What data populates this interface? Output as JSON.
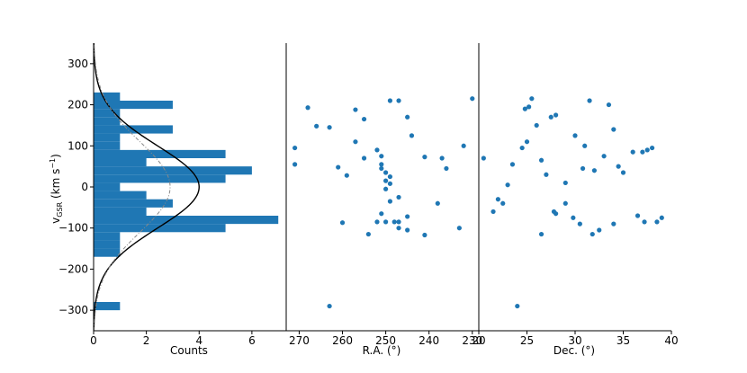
{
  "chart_data": [
    {
      "type": "bar",
      "orientation": "horizontal",
      "xlabel": "Counts",
      "ylabel_main": "v",
      "ylabel_sub": "GSR",
      "ylabel_units": " (km s",
      "ylabel_exp": "−1",
      "ylabel_close": ")",
      "xlim": [
        0,
        7.3
      ],
      "ylim": [
        -350,
        350
      ],
      "xticks": [
        0,
        2,
        4,
        6
      ],
      "yticks": [
        -300,
        -200,
        -100,
        0,
        100,
        200,
        300
      ],
      "bar_color": "#1f77b4",
      "bins": [
        {
          "low": -300,
          "high": -280,
          "count": 1
        },
        {
          "low": -170,
          "high": -150,
          "count": 1
        },
        {
          "low": -150,
          "high": -130,
          "count": 1
        },
        {
          "low": -130,
          "high": -110,
          "count": 1
        },
        {
          "low": -110,
          "high": -90,
          "count": 5
        },
        {
          "low": -90,
          "high": -70,
          "count": 7
        },
        {
          "low": -70,
          "high": -50,
          "count": 2
        },
        {
          "low": -50,
          "high": -30,
          "count": 3
        },
        {
          "low": -30,
          "high": -10,
          "count": 2
        },
        {
          "low": -10,
          "high": 10,
          "count": 1
        },
        {
          "low": 10,
          "high": 30,
          "count": 5
        },
        {
          "low": 30,
          "high": 50,
          "count": 6
        },
        {
          "low": 50,
          "high": 70,
          "count": 2
        },
        {
          "low": 70,
          "high": 90,
          "count": 5
        },
        {
          "low": 90,
          "high": 110,
          "count": 1
        },
        {
          "low": 110,
          "high": 130,
          "count": 1
        },
        {
          "low": 130,
          "high": 150,
          "count": 3
        },
        {
          "low": 150,
          "high": 170,
          "count": 1
        },
        {
          "low": 170,
          "high": 190,
          "count": 1
        },
        {
          "low": 190,
          "high": 210,
          "count": 3
        },
        {
          "low": 210,
          "high": 230,
          "count": 1
        }
      ],
      "curves": [
        {
          "style": "solid",
          "color": "#000000",
          "peak": 4.0,
          "mean": 0,
          "sigma": 100
        },
        {
          "style": "dashed",
          "color": "#888888",
          "peak": 2.9,
          "mean": 0,
          "sigma": 110
        }
      ]
    },
    {
      "type": "scatter",
      "xlabel": "R.A. (°)",
      "xlim": [
        273,
        228.5
      ],
      "xticks": [
        270,
        260,
        250,
        240,
        230
      ],
      "ylim": [
        -350,
        350
      ],
      "marker_color": "#1f77b4",
      "x": [
        271,
        271,
        268,
        266,
        263,
        259,
        260,
        255,
        257,
        255,
        261,
        249,
        257,
        252,
        251,
        251,
        250,
        249,
        250,
        249,
        247,
        251,
        241,
        237,
        232,
        230,
        236,
        245,
        244,
        238,
        245,
        233,
        247,
        241,
        245,
        247,
        247,
        249,
        251,
        250,
        248,
        250,
        252,
        254,
        263
      ],
      "y": [
        95,
        55,
        193,
        148,
        145,
        28,
        -87,
        165,
        110,
        70,
        48,
        210,
        188,
        90,
        75,
        55,
        35,
        25,
        15,
        8,
        210,
        45,
        73,
        70,
        100,
        215,
        45,
        170,
        125,
        -40,
        -72,
        -100,
        -100,
        -117,
        -105,
        -85,
        -25,
        -35,
        -65,
        -5,
        -85,
        -85,
        -85,
        -115,
        -290
      ]
    },
    {
      "type": "scatter",
      "xlabel": "Dec. (°)",
      "xlim": [
        20,
        40
      ],
      "xticks": [
        20,
        25,
        30,
        35,
        40
      ],
      "ylim": [
        -350,
        350
      ],
      "marker_color": "#1f77b4",
      "x": [
        20.5,
        21.5,
        22.5,
        22,
        23,
        23.5,
        24.5,
        25,
        24.8,
        25.2,
        25.5,
        26,
        26.5,
        27,
        27.5,
        28,
        29,
        30,
        31,
        31.5,
        30.8,
        32,
        33,
        33.5,
        34,
        34.5,
        35,
        36,
        37,
        37.5,
        38,
        38.5,
        39,
        36.5,
        37.2,
        34,
        32.5,
        31.8,
        30.5,
        29.8,
        29,
        28,
        27.8,
        26.5,
        24
      ],
      "y": [
        70,
        -60,
        -40,
        -30,
        5,
        55,
        95,
        110,
        190,
        195,
        215,
        150,
        65,
        30,
        170,
        175,
        10,
        125,
        100,
        210,
        45,
        40,
        75,
        200,
        140,
        50,
        35,
        85,
        85,
        90,
        95,
        -85,
        -75,
        -70,
        -85,
        -90,
        -105,
        -115,
        -90,
        -75,
        -40,
        -65,
        -60,
        -115,
        -290
      ]
    }
  ]
}
